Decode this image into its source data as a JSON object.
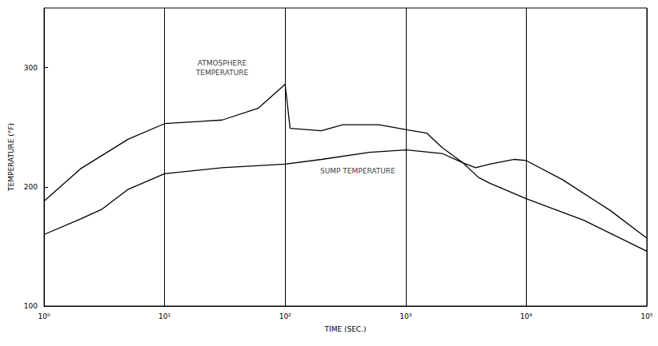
{
  "chart_data": {
    "type": "line",
    "x_label": "TIME (SEC.)",
    "y_label": "TEMPERATURE (°F)",
    "log": "x",
    "grid": "x",
    "xlim": [
      1,
      100000
    ],
    "xticks": [
      {
        "value": 1,
        "label": "10⁰"
      },
      {
        "value": 10,
        "label": "10¹"
      },
      {
        "value": 100,
        "label": "10²"
      },
      {
        "value": 1000,
        "label": "10³"
      },
      {
        "value": 10000,
        "label": "10⁴"
      },
      {
        "value": 100000,
        "label": "10⁵"
      }
    ],
    "ylim": [
      100,
      350
    ],
    "yticks": [
      100,
      200,
      300
    ],
    "series": [
      {
        "name": "ATMOSPHERE TEMPERATURE",
        "color": "#000000",
        "x": [
          1,
          2,
          5,
          10,
          30,
          60,
          100,
          110,
          200,
          300,
          600,
          1000,
          1500,
          2000,
          3000,
          3800,
          5000,
          8000,
          10000,
          20000,
          50000,
          100000
        ],
        "values": [
          188,
          215,
          240,
          253,
          256,
          266,
          286,
          249,
          247,
          252,
          252,
          248,
          245,
          233,
          220,
          216,
          219,
          223,
          222,
          206,
          180,
          157
        ]
      },
      {
        "name": "SUMP TEMPERATURE",
        "color": "#000000",
        "x": [
          1,
          2,
          3,
          5,
          10,
          30,
          100,
          200,
          500,
          1000,
          2000,
          3000,
          4000,
          5000,
          10000,
          30000,
          100000
        ],
        "values": [
          160,
          173,
          181,
          198,
          211,
          216,
          219,
          223,
          229,
          231,
          228,
          220,
          208,
          203,
          190,
          172,
          146
        ]
      }
    ],
    "annotations": [
      {
        "text": "ATMOSPHERE\nTEMPERATURE",
        "x": 30,
        "y": 300
      },
      {
        "text": "SUMP TEMPERATURE",
        "x": 400,
        "y": 213
      }
    ]
  }
}
